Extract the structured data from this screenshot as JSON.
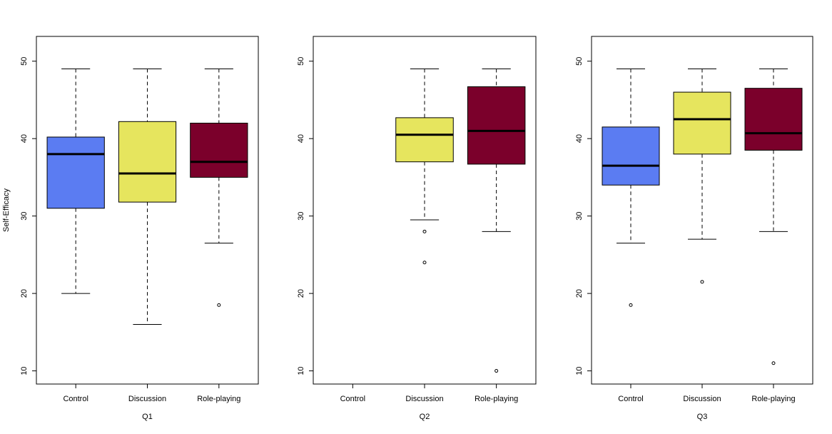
{
  "chart_data": {
    "type": "boxplot",
    "ylabel": "Self-Efficacy",
    "ylim": [
      8.3,
      53.2
    ],
    "yticks": [
      10,
      20,
      30,
      40,
      50
    ],
    "categories": [
      "Control",
      "Discussion",
      "Role-playing"
    ],
    "colors": {
      "Control": "#5b7cf2",
      "Discussion": "#e6e55e",
      "Role-playing": "#7b002b"
    },
    "panels": [
      {
        "xlabel": "Q1",
        "boxes": [
          {
            "group": "Control",
            "min": 20,
            "q1": 31,
            "median": 38,
            "q3": 40.2,
            "max": 49,
            "outliers": []
          },
          {
            "group": "Discussion",
            "min": 16,
            "q1": 31.8,
            "median": 35.5,
            "q3": 42.2,
            "max": 49,
            "outliers": []
          },
          {
            "group": "Role-playing",
            "min": 26.5,
            "q1": 35,
            "median": 37,
            "q3": 42,
            "max": 49,
            "outliers": [
              18.5
            ]
          }
        ]
      },
      {
        "xlabel": "Q2",
        "boxes": [
          {
            "group": "Control",
            "min": null,
            "q1": null,
            "median": null,
            "q3": null,
            "max": null,
            "outliers": []
          },
          {
            "group": "Discussion",
            "min": 29.5,
            "q1": 37,
            "median": 40.5,
            "q3": 42.7,
            "max": 49,
            "outliers": [
              28,
              24
            ]
          },
          {
            "group": "Role-playing",
            "min": 28,
            "q1": 36.7,
            "median": 41,
            "q3": 46.7,
            "max": 49,
            "outliers": [
              10
            ]
          }
        ]
      },
      {
        "xlabel": "Q3",
        "boxes": [
          {
            "group": "Control",
            "min": 26.5,
            "q1": 34,
            "median": 36.5,
            "q3": 41.5,
            "max": 49,
            "outliers": [
              18.5
            ]
          },
          {
            "group": "Discussion",
            "min": 27,
            "q1": 38,
            "median": 42.5,
            "q3": 46,
            "max": 49,
            "outliers": [
              21.5
            ]
          },
          {
            "group": "Role-playing",
            "min": 28,
            "q1": 38.5,
            "median": 40.7,
            "q3": 46.5,
            "max": 49,
            "outliers": [
              11
            ]
          }
        ]
      }
    ]
  }
}
